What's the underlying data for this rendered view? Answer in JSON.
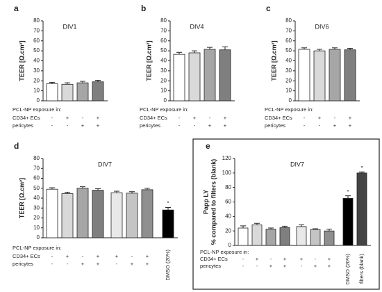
{
  "chart_data": [
    {
      "type": "bar",
      "panel": "a",
      "title": "DIV1",
      "ylabel": [
        "TEER [Ω.cm²]"
      ],
      "categories": [
        null,
        null,
        null,
        null
      ],
      "values": [
        17,
        16.5,
        18,
        19
      ],
      "errors": [
        1.5,
        1.5,
        1.5,
        1.5
      ],
      "colors": [
        "#ffffff",
        "#d9d9d9",
        "#a6a6a6",
        "#7f7f7f"
      ],
      "ylim": [
        0,
        80
      ],
      "yticks": [
        0,
        10,
        20,
        30,
        40,
        50,
        60,
        70,
        80
      ],
      "rows": [
        {
          "label": "PCL-NP exposure in:",
          "values": []
        },
        {
          "label": "CD34+ ECs",
          "values": [
            "-",
            "+",
            "-",
            "+"
          ]
        },
        {
          "label": "pericytes",
          "values": [
            "-",
            "-",
            "+",
            "+"
          ]
        }
      ]
    },
    {
      "type": "bar",
      "panel": "b",
      "title": "DIV4",
      "ylabel": [
        "TEER [Ω.cm²]"
      ],
      "categories": [
        null,
        null,
        null,
        null
      ],
      "values": [
        46.5,
        48,
        51.5,
        51
      ],
      "errors": [
        2,
        2,
        2,
        3
      ],
      "colors": [
        "#ffffff",
        "#d9d9d9",
        "#a6a6a6",
        "#7f7f7f"
      ],
      "ylim": [
        0,
        80
      ],
      "yticks": [
        0,
        10,
        20,
        30,
        40,
        50,
        60,
        70,
        80
      ],
      "rows": [
        {
          "label": "PCL-NP exposure in:",
          "values": []
        },
        {
          "label": "CD34+ ECs",
          "values": [
            "-",
            "+",
            "-",
            "+"
          ]
        },
        {
          "label": "pericytes",
          "values": [
            "-",
            "-",
            "+",
            "+"
          ]
        }
      ]
    },
    {
      "type": "bar",
      "panel": "c",
      "title": "DIV6",
      "ylabel": [
        "TEER [Ω.cm²]"
      ],
      "categories": [
        null,
        null,
        null,
        null
      ],
      "values": [
        51.5,
        50,
        51.5,
        51
      ],
      "errors": [
        1.5,
        1.5,
        1.5,
        1.5
      ],
      "colors": [
        "#ffffff",
        "#d9d9d9",
        "#a6a6a6",
        "#7f7f7f"
      ],
      "ylim": [
        0,
        80
      ],
      "yticks": [
        0,
        10,
        20,
        30,
        40,
        50,
        60,
        70,
        80
      ],
      "rows": [
        {
          "label": "PCL-NP exposure in:",
          "values": []
        },
        {
          "label": "CD34+ ECs",
          "values": [
            "-",
            "+",
            "-",
            "+"
          ]
        },
        {
          "label": "pericytes",
          "values": [
            "-",
            "-",
            "+",
            "+"
          ]
        }
      ]
    },
    {
      "type": "bar",
      "panel": "d",
      "title": "DIV7",
      "ylabel": [
        "TEER [Ω.cm²]"
      ],
      "categories": [
        null,
        null,
        null,
        null,
        null,
        null,
        null,
        "DMSO (20%)"
      ],
      "values": [
        49,
        44.5,
        50,
        48,
        45.5,
        45,
        48.5,
        28
      ],
      "errors": [
        1.5,
        1.5,
        1.5,
        1.5,
        1.5,
        1.5,
        1.5,
        2.5
      ],
      "markers": [
        null,
        null,
        null,
        null,
        null,
        null,
        null,
        "°"
      ],
      "colors": [
        "#ffffff",
        "#d9d9d9",
        "#a6a6a6",
        "#7f7f7f",
        "#e8e8e8",
        "#c4c4c4",
        "#8f8f8f",
        "#000000"
      ],
      "ylim": [
        0,
        80
      ],
      "yticks": [
        0,
        10,
        20,
        30,
        40,
        50,
        60,
        70,
        80
      ],
      "rows": [
        {
          "label": "PCL-NP exposure in:",
          "values": []
        },
        {
          "label": "CD34+ ECs",
          "values": [
            "-",
            "+",
            "-",
            "+",
            "+",
            "-",
            "+",
            null
          ]
        },
        {
          "label": "pericytes",
          "values": [
            "-",
            "-",
            "+",
            "+",
            "-",
            "+",
            "+",
            null
          ]
        }
      ]
    },
    {
      "type": "bar",
      "panel": "e",
      "title": "DIV7",
      "ylabel": [
        "Papp LY",
        "% compared to filters (blank)"
      ],
      "categories": [
        null,
        null,
        null,
        null,
        null,
        null,
        null,
        "DMSO (20%)",
        "filters (blank)"
      ],
      "values": [
        24,
        28.5,
        22.5,
        24.5,
        26,
        22,
        20,
        65,
        100
      ],
      "errors": [
        3,
        2,
        1.5,
        2,
        2.5,
        1,
        2.5,
        3.5,
        1.5
      ],
      "markers": [
        null,
        null,
        null,
        null,
        null,
        null,
        null,
        "°",
        "*"
      ],
      "colors": [
        "#ffffff",
        "#d9d9d9",
        "#a6a6a6",
        "#7f7f7f",
        "#e8e8e8",
        "#c4c4c4",
        "#8f8f8f",
        "#000000",
        "#444444"
      ],
      "ylim": [
        0,
        120
      ],
      "yticks": [
        0,
        20,
        40,
        60,
        80,
        100,
        120
      ],
      "rows": [
        {
          "label": "PCL-NP exposure in:",
          "values": []
        },
        {
          "label": "CD34+ ECs",
          "values": [
            "-",
            "+",
            "-",
            "+",
            "+",
            "-",
            "+",
            null,
            null
          ]
        },
        {
          "label": "pericytes",
          "values": [
            "-",
            "-",
            "+",
            "+",
            "-",
            "+",
            "+",
            null,
            null
          ]
        }
      ]
    }
  ]
}
